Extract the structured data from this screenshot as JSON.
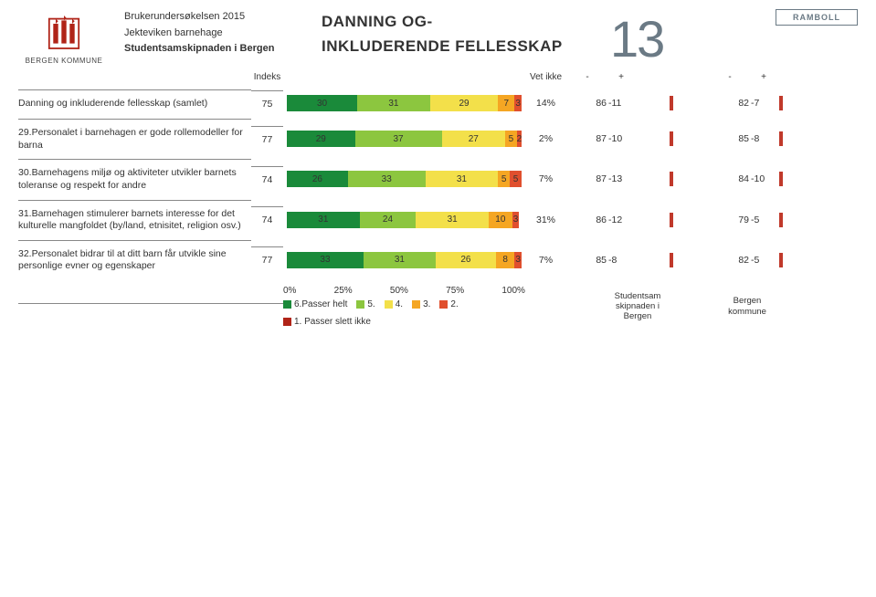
{
  "header": {
    "org_logo_text": "BERGEN KOMMUNE",
    "survey_line1": "Brukerundersøkelsen 2015",
    "survey_line2": "Jekteviken barnehage",
    "survey_line3": "Studentsamskipnaden i Bergen",
    "title_line1": "DANNING OG-",
    "title_line2": "INKLUDERENDE FELLESSKAP",
    "page_number": "13",
    "brand2": "RAMBOLL"
  },
  "columns": {
    "indeks": "Indeks",
    "vet_ikke": "Vet ikke",
    "minus": "-",
    "plus": "+",
    "group_a": "Studentsam\nskipnaden i\nBergen",
    "group_b": "Bergen\nkommune"
  },
  "chart": {
    "colors": {
      "c6": "#1a8a3a",
      "c5": "#8cc63f",
      "c4": "#f3e04a",
      "c3": "#f5a623",
      "c2": "#e04f2e",
      "c1": "#b02418",
      "tick": "#c0392b"
    },
    "axis_labels": [
      "0%",
      "25%",
      "50%",
      "75%",
      "100%"
    ],
    "legend": [
      {
        "sw": "c6",
        "label": "6.Passer helt"
      },
      {
        "sw": "c5",
        "label": "5."
      },
      {
        "sw": "c4",
        "label": "4."
      },
      {
        "sw": "c3",
        "label": "3."
      },
      {
        "sw": "c2",
        "label": "2."
      },
      {
        "sw": "c1",
        "label": "1. Passer slett ikke"
      }
    ]
  },
  "rows": [
    {
      "label": "Danning og inkluderende fellesskap (samlet)",
      "index": "75",
      "segs": [
        {
          "c": "c6",
          "v": 30
        },
        {
          "c": "c5",
          "v": 31
        },
        {
          "c": "c4",
          "v": 29
        },
        {
          "c": "c3",
          "v": 7
        },
        {
          "c": "c2",
          "v": 3
        }
      ],
      "vet_ikke": "14%",
      "a_val": "86",
      "a_diff": "-11",
      "b_val": "82",
      "b_diff": "-7"
    },
    {
      "label": "29.Personalet i barnehagen er gode rollemodeller for barna",
      "index": "77",
      "segs": [
        {
          "c": "c6",
          "v": 29
        },
        {
          "c": "c5",
          "v": 37
        },
        {
          "c": "c4",
          "v": 27
        },
        {
          "c": "c3",
          "v": 5
        },
        {
          "c": "c2",
          "v": 2
        }
      ],
      "vet_ikke": "2%",
      "a_val": "87",
      "a_diff": "-10",
      "b_val": "85",
      "b_diff": "-8"
    },
    {
      "label": "30.Barnehagens miljø og aktiviteter utvikler barnets toleranse og respekt for andre",
      "index": "74",
      "segs": [
        {
          "c": "c6",
          "v": 26
        },
        {
          "c": "c5",
          "v": 33
        },
        {
          "c": "c4",
          "v": 31
        },
        {
          "c": "c3",
          "v": 5
        },
        {
          "c": "c2",
          "v": 5
        }
      ],
      "vet_ikke": "7%",
      "a_val": "87",
      "a_diff": "-13",
      "b_val": "84",
      "b_diff": "-10"
    },
    {
      "label": "31.Barnehagen stimulerer barnets interesse for det kulturelle mangfoldet (by/land, etnisitet, religion osv.)",
      "index": "74",
      "segs": [
        {
          "c": "c6",
          "v": 31
        },
        {
          "c": "c5",
          "v": 24
        },
        {
          "c": "c4",
          "v": 31
        },
        {
          "c": "c3",
          "v": 10
        },
        {
          "c": "c2",
          "v": 3
        }
      ],
      "vet_ikke": "31%",
      "a_val": "86",
      "a_diff": "-12",
      "b_val": "79",
      "b_diff": "-5"
    },
    {
      "label": "32.Personalet bidrar til at ditt barn får utvikle sine personlige evner og egenskaper",
      "index": "77",
      "segs": [
        {
          "c": "c6",
          "v": 33
        },
        {
          "c": "c5",
          "v": 31
        },
        {
          "c": "c4",
          "v": 26
        },
        {
          "c": "c3",
          "v": 8
        },
        {
          "c": "c2",
          "v": 3
        }
      ],
      "vet_ikke": "7%",
      "a_val": "85",
      "a_diff": "-8",
      "b_val": "82",
      "b_diff": "-5"
    }
  ]
}
